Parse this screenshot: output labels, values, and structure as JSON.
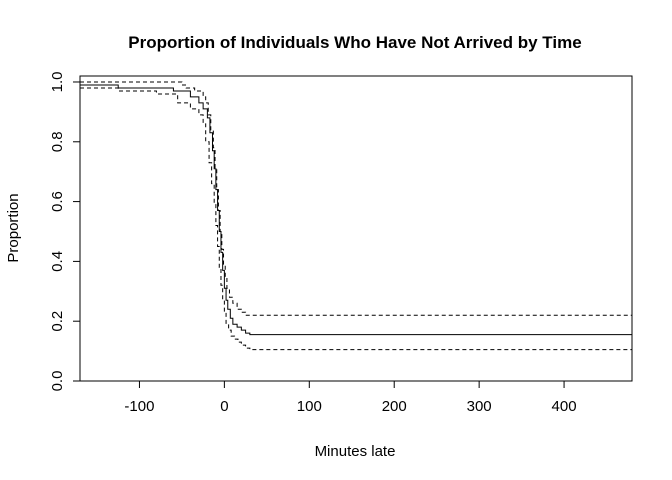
{
  "chart_data": {
    "type": "line",
    "title": "Proportion of Individuals Who Have Not Arrived by Time",
    "xlabel": "Minutes late",
    "ylabel": "Proportion",
    "xlim": [
      -170,
      480
    ],
    "ylim": [
      0.0,
      1.02
    ],
    "x_ticks": [
      -100,
      0,
      100,
      200,
      300,
      400
    ],
    "y_ticks": [
      0.0,
      0.2,
      0.4,
      0.6,
      0.8,
      1.0
    ],
    "x_tick_labels": [
      "-100",
      "0",
      "100",
      "200",
      "300",
      "400"
    ],
    "y_tick_labels": [
      "0.0",
      "0.2",
      "0.4",
      "0.6",
      "0.8",
      "1.0"
    ],
    "grid": false,
    "legend": "none",
    "series": [
      {
        "style": "solid",
        "color": "#000000",
        "x": [
          -170,
          -125,
          -60,
          -40,
          -30,
          -25,
          -20,
          -17,
          -14,
          -12,
          -10,
          -8,
          -6,
          -4,
          -2,
          0,
          2,
          4,
          7,
          10,
          15,
          20,
          25,
          30,
          480
        ],
        "y": [
          0.99,
          0.98,
          0.97,
          0.95,
          0.93,
          0.91,
          0.88,
          0.83,
          0.77,
          0.71,
          0.64,
          0.57,
          0.5,
          0.43,
          0.37,
          0.31,
          0.27,
          0.24,
          0.21,
          0.19,
          0.18,
          0.17,
          0.16,
          0.155,
          0.155
        ]
      },
      {
        "style": "dashed",
        "color": "#000000",
        "x": [
          -170,
          -55,
          -50,
          -45,
          -35,
          -25,
          -22,
          -19,
          -16,
          -13,
          -11,
          -9,
          -7,
          -5,
          -3,
          -1,
          1,
          3,
          6,
          10,
          15,
          20,
          25,
          30,
          480
        ],
        "y": [
          1.0,
          1.0,
          0.99,
          0.98,
          0.97,
          0.95,
          0.93,
          0.89,
          0.84,
          0.78,
          0.71,
          0.64,
          0.57,
          0.5,
          0.44,
          0.39,
          0.35,
          0.31,
          0.28,
          0.26,
          0.24,
          0.23,
          0.22,
          0.22,
          0.22
        ]
      },
      {
        "style": "dashed",
        "color": "#000000",
        "x": [
          -170,
          -125,
          -80,
          -55,
          -40,
          -30,
          -25,
          -22,
          -18,
          -15,
          -12,
          -10,
          -8,
          -6,
          -4,
          -2,
          0,
          2,
          5,
          8,
          12,
          16,
          20,
          25,
          30,
          480
        ],
        "y": [
          0.98,
          0.97,
          0.96,
          0.93,
          0.91,
          0.89,
          0.86,
          0.8,
          0.73,
          0.66,
          0.59,
          0.52,
          0.45,
          0.38,
          0.32,
          0.27,
          0.23,
          0.19,
          0.17,
          0.15,
          0.14,
          0.13,
          0.12,
          0.11,
          0.105,
          0.105
        ]
      }
    ]
  }
}
